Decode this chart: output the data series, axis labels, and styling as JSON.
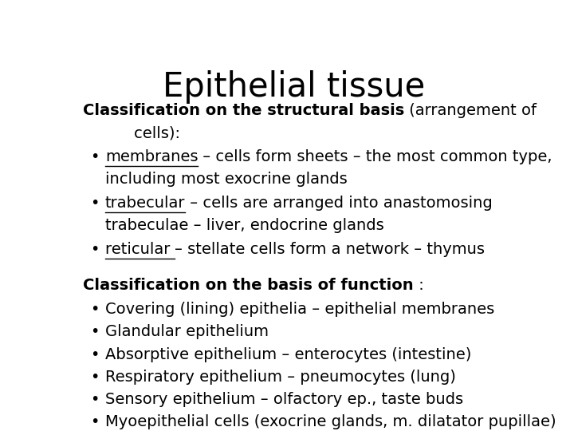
{
  "title": "Epithelial tissue",
  "background_color": "#ffffff",
  "text_color": "#000000",
  "title_fontsize": 30,
  "body_fontsize": 14,
  "font_family": "Liberation Sans",
  "section1_header_bold": "Classification on the structural basis",
  "section1_header_normal": " (arrangement of",
  "section1_header_indent": "    cells):",
  "section1_bullets": [
    {
      "underline": "membranes",
      "rest": " – cells form sheets – the most common type,",
      "rest2": "including most exocrine glands"
    },
    {
      "underline": "trabecular",
      "rest": " – cells are arranged into anastomosing",
      "rest2": "trabeculae – liver, endocrine glands"
    },
    {
      "underline": "reticular ",
      "rest": "– stellate cells form a network – thymus",
      "rest2": ""
    }
  ],
  "section2_header_bold": "Classification on the basis of function",
  "section2_header_normal": " :",
  "section2_bullets": [
    "Covering (lining) epithelia – epithelial membranes",
    "Glandular epithelium",
    "Absorptive epithelium – enterocytes (intestine)",
    "Respiratory epithelium – pneumocytes (lung)",
    "Sensory epithelium – olfactory ep., taste buds",
    "Myoepithelial cells (exocrine glands, m. dilatator pupillae)"
  ]
}
